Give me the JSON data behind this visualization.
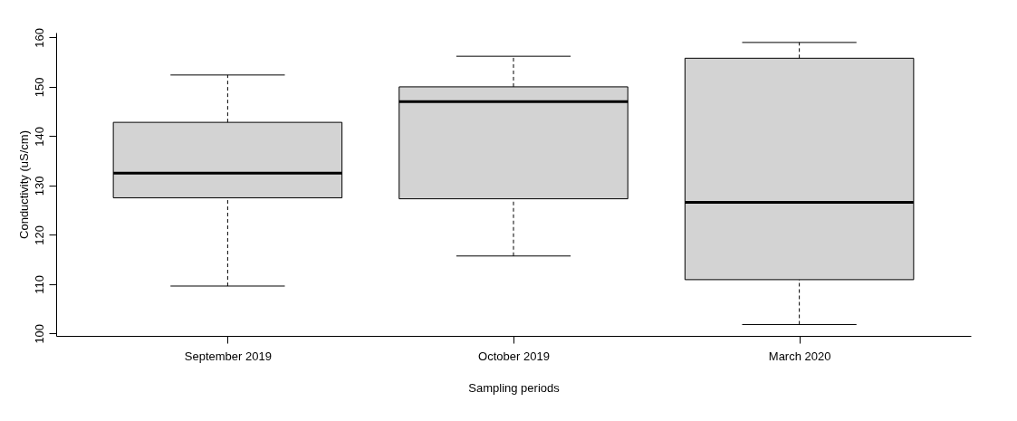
{
  "chart_data": {
    "type": "box",
    "xlabel": "Sampling periods",
    "ylabel": "Conductivity (uS/cm)",
    "categories": [
      "September 2019",
      "October 2019",
      "March 2020"
    ],
    "boxes": [
      {
        "low": 109.6,
        "q1": 127.5,
        "median": 132.5,
        "q3": 142.8,
        "high": 152.4
      },
      {
        "low": 115.7,
        "q1": 127.3,
        "median": 147.0,
        "q3": 150.0,
        "high": 156.2
      },
      {
        "low": 101.8,
        "q1": 110.9,
        "median": 126.6,
        "q3": 155.8,
        "high": 159.0
      }
    ],
    "color": "#d3d3d3",
    "ylim": [
      99.5,
      161
    ],
    "yticks": [
      100,
      110,
      120,
      130,
      140,
      150,
      160
    ]
  }
}
